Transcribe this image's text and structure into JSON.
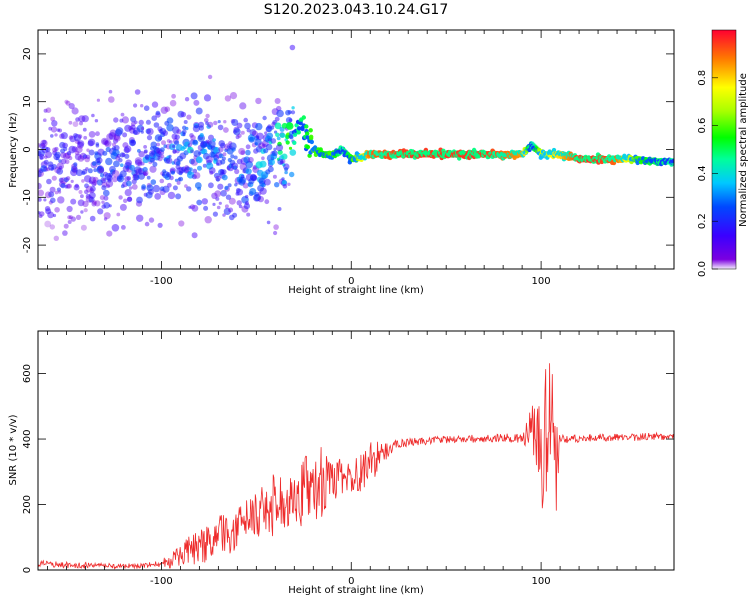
{
  "title": "S120.2023.043.10.24.G17",
  "colors": {
    "snr_line": "#ee2b2b",
    "axis": "#000000"
  },
  "chart_data": [
    {
      "type": "heatmap",
      "xlabel": "Height of straight line (km)",
      "ylabel": "Frequency (Hz)",
      "xlim": [
        -165,
        170
      ],
      "ylim": [
        -25,
        25
      ],
      "x_ticks": [
        -100,
        0,
        100
      ],
      "y_ticks": [
        -20,
        -10,
        0,
        10,
        20
      ],
      "colorbar": {
        "label": "Normalized spectral amplitude",
        "range": [
          0,
          1
        ],
        "ticks": [
          "0.0",
          "0.2",
          "0.4",
          "0.6",
          "0.8"
        ],
        "colormap": "rainbow (violet 0 → red 1)"
      },
      "trace": {
        "x": [
          -165,
          -140,
          -120,
          -100,
          -80,
          -60,
          -40,
          -30,
          -25,
          -20,
          -15,
          -10,
          -5,
          0,
          10,
          30,
          50,
          70,
          80,
          90,
          95,
          100,
          110,
          120,
          130,
          140,
          150,
          160,
          170
        ],
        "y": [
          -5,
          -4,
          -3,
          -2,
          0,
          -4,
          0,
          5,
          3,
          0,
          -1,
          -1,
          0,
          -2,
          -1,
          -1,
          -1,
          -1,
          -1,
          -1,
          1,
          -1,
          -1,
          -2,
          -2,
          -2,
          -2,
          -2.5,
          -2.5
        ],
        "amplitude": [
          0.15,
          0.15,
          0.2,
          0.2,
          0.25,
          0.2,
          0.3,
          0.45,
          0.5,
          0.6,
          0.55,
          0.6,
          0.45,
          0.55,
          0.9,
          0.95,
          0.95,
          0.95,
          0.9,
          0.85,
          0.4,
          0.7,
          0.8,
          0.95,
          0.95,
          0.9,
          0.6,
          0.5,
          0.45
        ]
      }
    },
    {
      "type": "line",
      "xlabel": "Height of straight line (km)",
      "ylabel": "SNR (10 * v/v)",
      "xlim": [
        -165,
        170
      ],
      "ylim": [
        0,
        730
      ],
      "x_ticks": [
        -100,
        0,
        100
      ],
      "y_ticks": [
        0,
        200,
        400,
        600
      ],
      "series": [
        {
          "x": [
            -165,
            -150,
            -140,
            -130,
            -120,
            -110,
            -100,
            -95,
            -90,
            -85,
            -80,
            -75,
            -70,
            -65,
            -60,
            -55,
            -50,
            -45,
            -40,
            -35,
            -30,
            -25,
            -20,
            -15,
            -10,
            -5,
            0,
            5,
            10,
            15,
            20,
            25,
            30,
            35,
            40,
            50,
            60,
            70,
            80,
            90,
            95,
            100,
            105,
            108,
            110,
            120,
            130,
            140,
            150,
            160,
            170
          ],
          "y": [
            20,
            15,
            14,
            12,
            12,
            12,
            18,
            30,
            45,
            60,
            70,
            80,
            100,
            110,
            130,
            150,
            165,
            185,
            200,
            215,
            225,
            240,
            255,
            270,
            275,
            280,
            285,
            300,
            330,
            350,
            370,
            385,
            390,
            392,
            395,
            398,
            400,
            402,
            405,
            400,
            420,
            360,
            420,
            380,
            400,
            402,
            404,
            405,
            406,
            408,
            410
          ],
          "noise": [
            10,
            10,
            10,
            8,
            8,
            8,
            12,
            25,
            35,
            45,
            50,
            60,
            65,
            65,
            65,
            65,
            70,
            90,
            100,
            90,
            90,
            110,
            110,
            110,
            65,
            60,
            50,
            60,
            70,
            40,
            20,
            15,
            12,
            12,
            12,
            12,
            12,
            12,
            12,
            18,
            80,
            220,
            240,
            220,
            15,
            12,
            12,
            12,
            12,
            12,
            12
          ]
        }
      ]
    }
  ]
}
